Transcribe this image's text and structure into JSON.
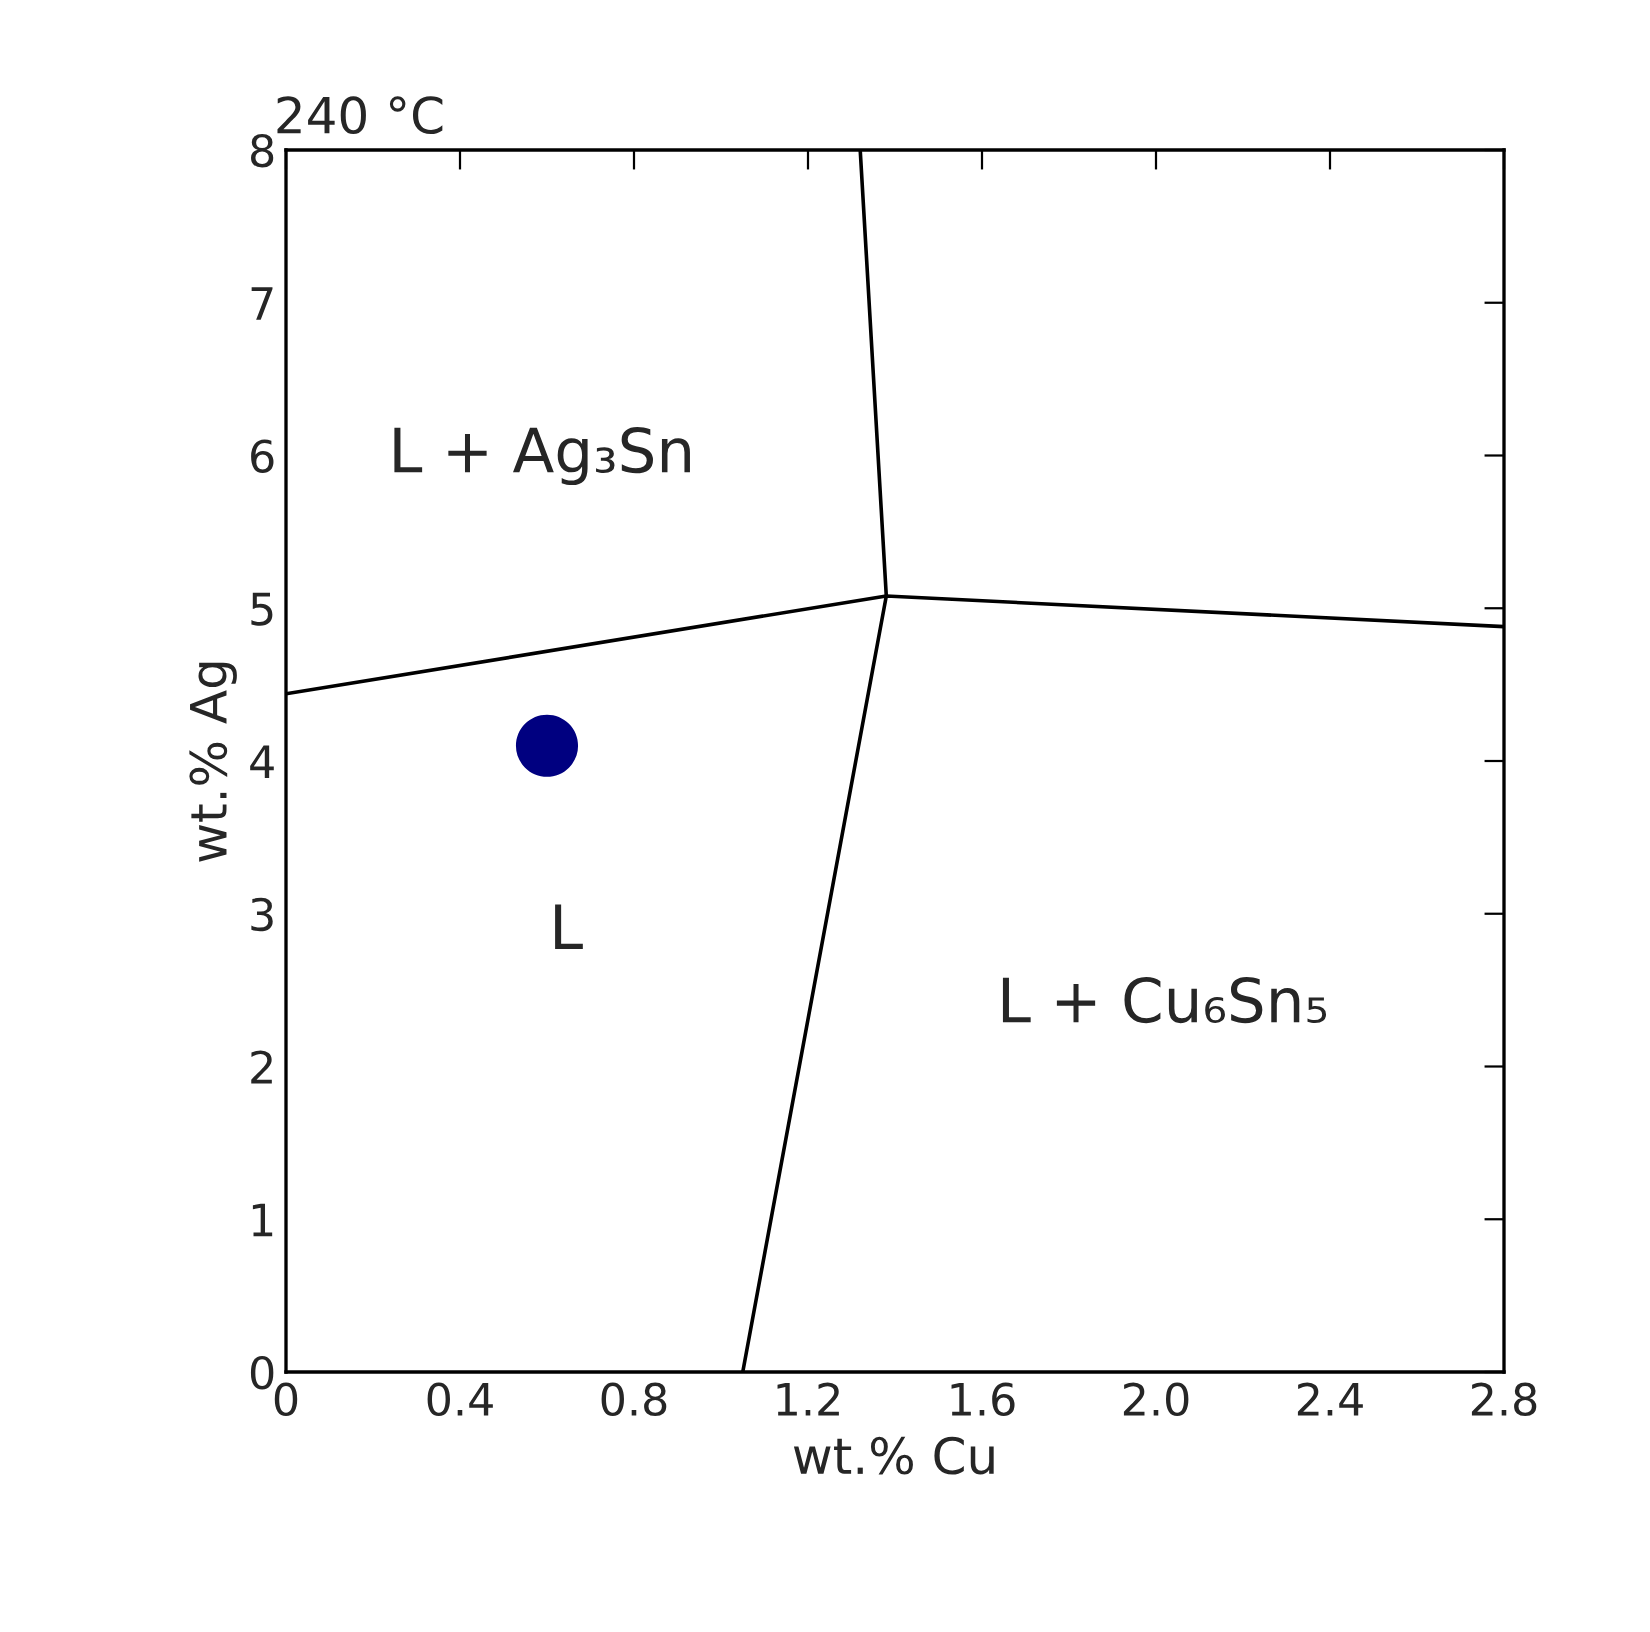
{
  "chart_data": {
    "type": "line",
    "title": "240 °C",
    "xlabel": "wt.% Cu",
    "ylabel": "wt.% Ag",
    "xlim": [
      0,
      2.8
    ],
    "ylim": [
      0,
      8
    ],
    "xticks": [
      0,
      0.4,
      0.8,
      1.2,
      1.6,
      {
        "value": 2,
        "label": "2.0"
      },
      2.4,
      2.8
    ],
    "yticks": [
      0,
      1,
      2,
      3,
      4,
      5,
      6,
      7,
      8
    ],
    "grid": false,
    "legend": false,
    "line_style": "solid",
    "series": [
      {
        "color": "#000000",
        "x": [
          0,
          1.38,
          2.8
        ],
        "values": [
          4.44,
          5.08,
          4.88
        ]
      },
      {
        "color": "#000000",
        "x": [
          1.05,
          1.38,
          1.32
        ],
        "values": [
          0,
          5.08,
          8
        ]
      },
      {
        "type": "scatter",
        "color": "#000080",
        "x": [
          0.6
        ],
        "values": [
          4.1
        ]
      }
    ],
    "annotations": [
      "L + Ag₃Sn",
      "L",
      "L + Cu₆Sn₅"
    ]
  }
}
